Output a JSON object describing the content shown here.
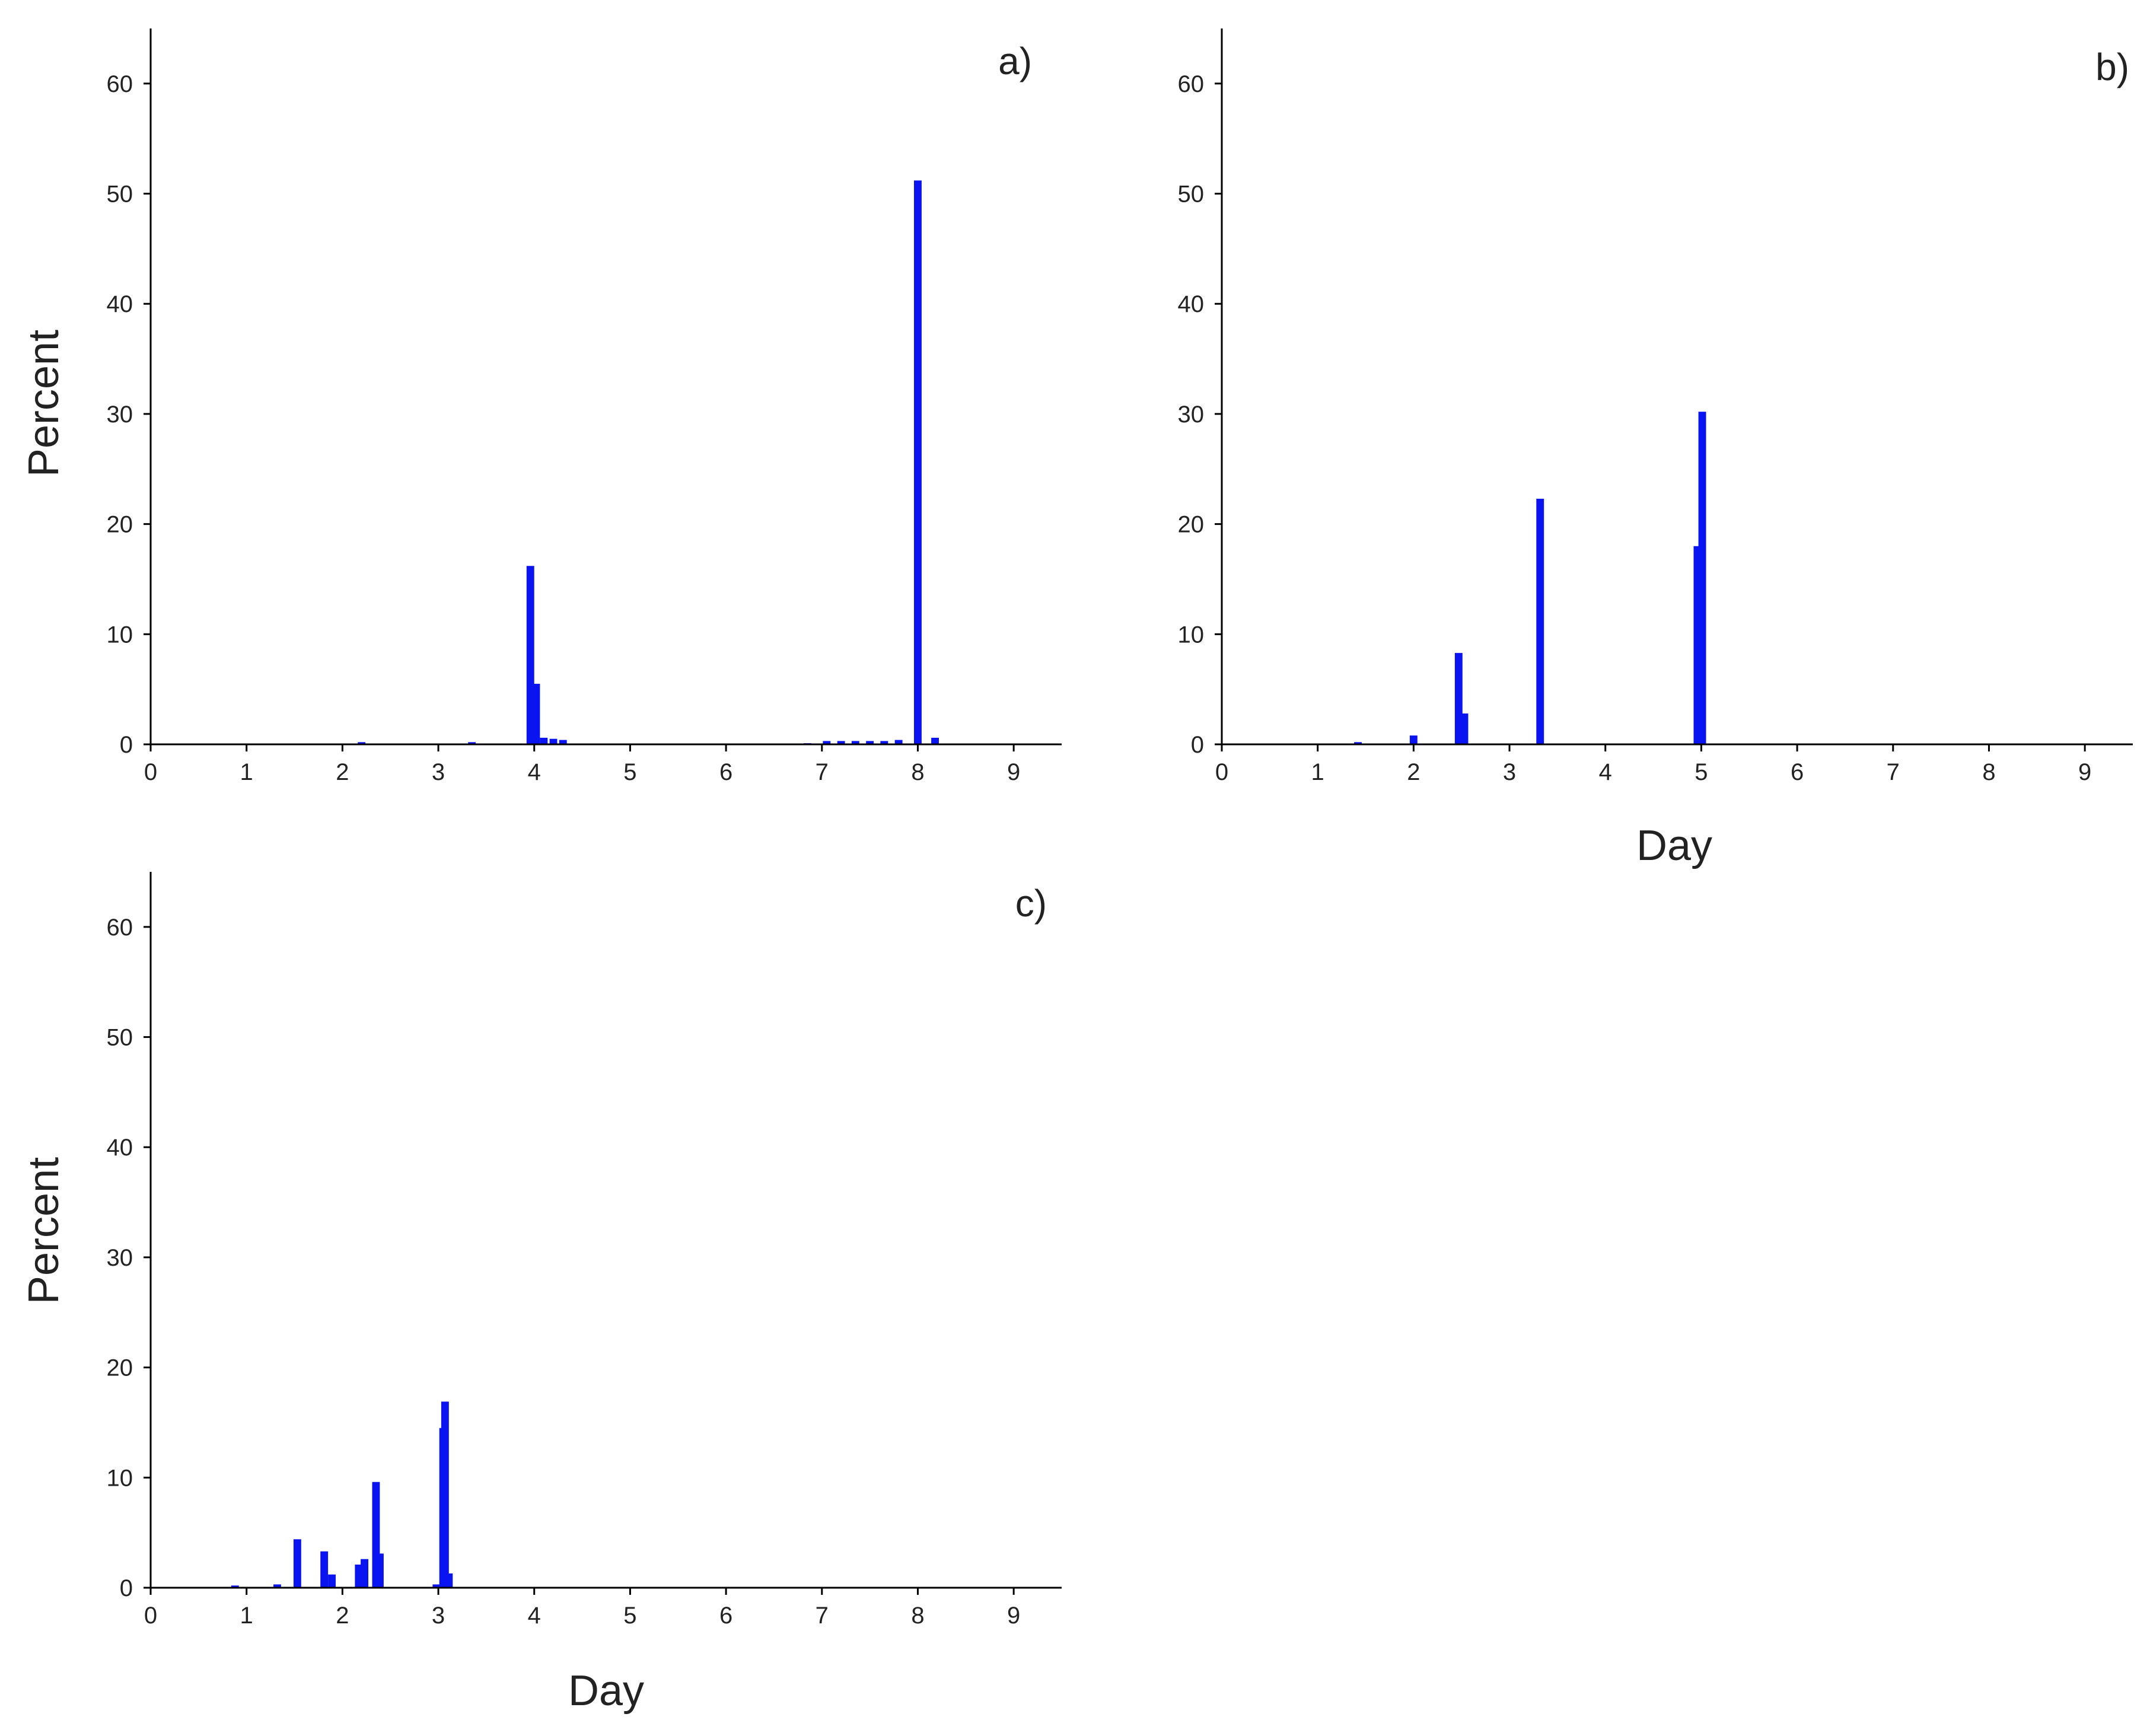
{
  "chart_data": [
    {
      "type": "bar",
      "panel_label": "a)",
      "xlabel": "",
      "ylabel": "Percent",
      "xlim": [
        0,
        9.5
      ],
      "ylim": [
        0,
        65
      ],
      "xticks": [
        "0",
        "1",
        "2",
        "3",
        "4",
        "5",
        "6",
        "7",
        "8",
        "9"
      ],
      "yticks": [
        "0",
        "10",
        "20",
        "30",
        "40",
        "50",
        "60"
      ],
      "color": "#0a14f0",
      "bar_width": 0.08,
      "x": [
        2.2,
        3.35,
        3.96,
        4.02,
        4.1,
        4.2,
        4.3,
        6.85,
        7.05,
        7.2,
        7.35,
        7.5,
        7.65,
        7.8,
        8.0,
        8.18
      ],
      "values": [
        0.2,
        0.2,
        16.2,
        5.5,
        0.6,
        0.5,
        0.4,
        0.1,
        0.3,
        0.3,
        0.3,
        0.3,
        0.3,
        0.4,
        51.2,
        0.6
      ]
    },
    {
      "type": "bar",
      "panel_label": "b)",
      "xlabel": "Day",
      "ylabel": "",
      "xlim": [
        0,
        9.5
      ],
      "ylim": [
        0,
        65
      ],
      "xticks": [
        "0",
        "1",
        "2",
        "3",
        "4",
        "5",
        "6",
        "7",
        "8",
        "9"
      ],
      "yticks": [
        "0",
        "10",
        "20",
        "30",
        "40",
        "50",
        "60"
      ],
      "color": "#0a14f0",
      "bar_width": 0.08,
      "x": [
        1.42,
        2.0,
        2.47,
        2.53,
        3.32,
        4.96,
        5.01
      ],
      "values": [
        0.2,
        0.8,
        8.3,
        2.8,
        22.3,
        18.0,
        30.2
      ]
    },
    {
      "type": "bar",
      "panel_label": "c)",
      "xlabel": "Day",
      "ylabel": "Percent",
      "xlim": [
        0,
        9.5
      ],
      "ylim": [
        0,
        65
      ],
      "xticks": [
        "0",
        "1",
        "2",
        "3",
        "4",
        "5",
        "6",
        "7",
        "8",
        "9"
      ],
      "yticks": [
        "0",
        "10",
        "20",
        "30",
        "40",
        "50",
        "60"
      ],
      "color": "#0a14f0",
      "bar_width": 0.08,
      "x": [
        0.88,
        1.32,
        1.53,
        1.81,
        1.89,
        2.17,
        2.23,
        2.35,
        2.39,
        2.98,
        3.05,
        3.07,
        3.11
      ],
      "values": [
        0.2,
        0.3,
        4.4,
        3.3,
        1.2,
        2.1,
        2.6,
        9.6,
        3.1,
        0.3,
        14.5,
        16.9,
        1.3
      ]
    }
  ]
}
